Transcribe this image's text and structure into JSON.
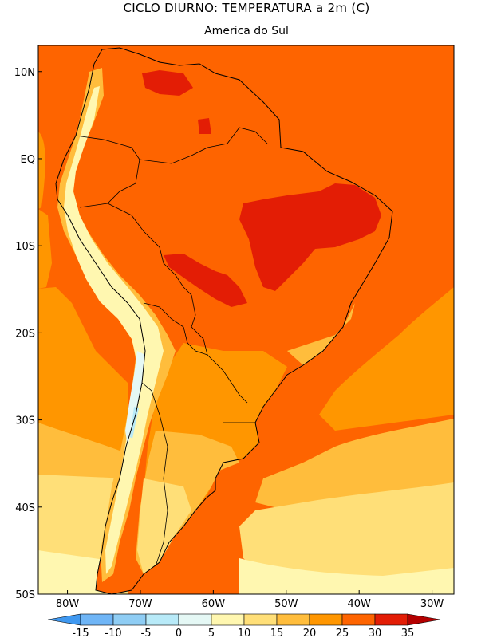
{
  "header": {
    "title": "CICLO DIURNO: TEMPERATURA a 2m (C)",
    "subtitle": "America do Sul"
  },
  "map": {
    "variable": "TEMPERATURA a 2m",
    "units": "C",
    "region": "America do Sul",
    "lat_range": [
      -50,
      13
    ],
    "lon_range": [
      -84,
      -27
    ],
    "lat_labels": [
      {
        "text": "10N",
        "lat": 10
      },
      {
        "text": "EQ",
        "lat": 0
      },
      {
        "text": "10S",
        "lat": -10
      },
      {
        "text": "20S",
        "lat": -20
      },
      {
        "text": "30S",
        "lat": -30
      },
      {
        "text": "40S",
        "lat": -40
      },
      {
        "text": "50S",
        "lat": -50
      }
    ],
    "lon_labels": [
      {
        "text": "80W",
        "lon": -80
      },
      {
        "text": "70W",
        "lon": -70
      },
      {
        "text": "60W",
        "lon": -60
      },
      {
        "text": "50W",
        "lon": -50
      },
      {
        "text": "40W",
        "lon": -40
      },
      {
        "text": "30W",
        "lon": -30
      }
    ]
  },
  "colorbar": {
    "levels": [
      "-15",
      "-10",
      "-5",
      "0",
      "5",
      "10",
      "15",
      "20",
      "25",
      "30",
      "35"
    ],
    "colors": [
      "#3f98f0",
      "#6fb5f6",
      "#8fcdf4",
      "#b8eaf8",
      "#e5f8f5",
      "#fff7b0",
      "#ffdf78",
      "#ffbd3c",
      "#ff9600",
      "#fe6400",
      "#e31d05",
      "#b40000"
    ],
    "shape": "triangular ends"
  },
  "palette": {
    "ocean_warm": "#fe6400",
    "ocean_mid": "#ff9600",
    "ocean_cool": "#ffbd3c",
    "ocean_cold": "#ffdf78",
    "land_hot": "#e31d05",
    "land_warm": "#fe6400",
    "andes_cool": "#fff7b0",
    "andes_cold": "#b8eaf8"
  }
}
